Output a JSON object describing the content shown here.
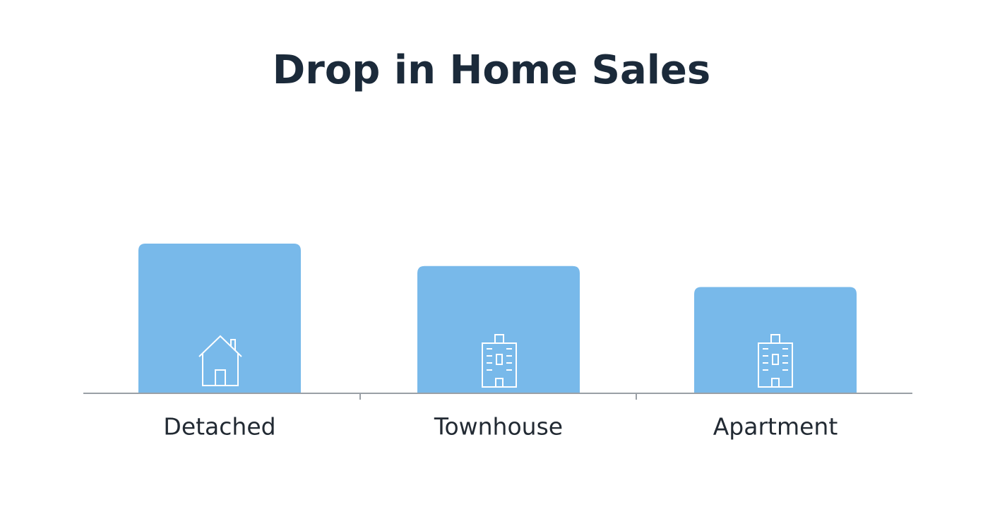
{
  "chart_data": {
    "type": "bar",
    "title": "Drop in Home Sales",
    "categories": [
      "Detached",
      "Townhouse",
      "Apartment"
    ],
    "values": [
      100,
      85,
      71
    ],
    "color": "#78b9ea"
  }
}
